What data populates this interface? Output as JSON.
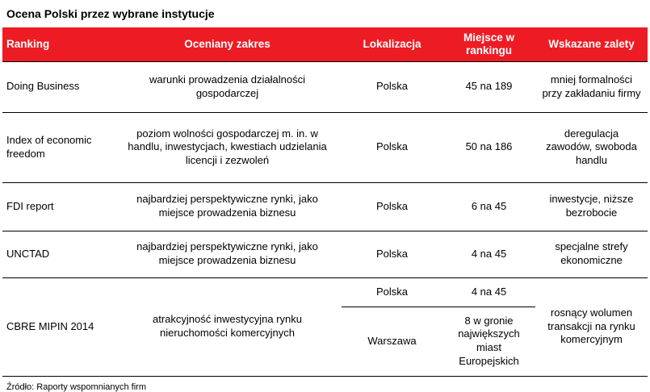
{
  "title": "Ocena Polski przez wybrane instytucje",
  "source": "Źródło: Raporty wspomnianych firm",
  "colors": {
    "header_bg": "#ED1C24",
    "header_text": "#FFFFFF",
    "border": "#000000"
  },
  "table": {
    "headers": [
      "Ranking",
      "Oceniany zakres",
      "Lokalizacja",
      "Miejsce w rankingu",
      "Wskazane zalety"
    ],
    "rows": [
      {
        "ranking": "Doing Business",
        "zakres": "warunki prowadzenia działalności gospodarczej",
        "lokalizacja": "Polska",
        "miejsce": "45 na 189",
        "zalety": "mniej formalności przy zakładaniu firmy"
      },
      {
        "ranking": "Index of economic freedom",
        "zakres": "poziom wolności gospodarczej m. in. w handlu, inwestycjach, kwestiach udzielania licencji i zezwoleń",
        "lokalizacja": "Polska",
        "miejsce": "50 na 186",
        "zalety": "deregulacja zawodów, swoboda handlu"
      },
      {
        "ranking": "FDI report",
        "zakres": "najbardziej perspektywiczne rynki, jako miejsce prowadzenia biznesu",
        "lokalizacja": "Polska",
        "miejsce": "6 na 45",
        "zalety": "inwestycje, niższe bezrobocie"
      },
      {
        "ranking": "UNCTAD",
        "zakres": "najbardziej perspektywiczne rynki, jako miejsce prowadzenia biznesu",
        "lokalizacja": "Polska",
        "miejsce": "4 na 45",
        "zalety": "specjalne strefy ekonomiczne"
      },
      {
        "ranking": "CBRE MIPIN 2014",
        "zakres": "atrakcyjność inwestycyjna rynku nieruchomości komercyjnych",
        "zalety": "rosnący wolumen transakcji na rynku komercyjnym",
        "sub_rows": [
          {
            "lokalizacja": "Polska",
            "miejsce": "4 na 45"
          },
          {
            "lokalizacja": "Warszawa",
            "miejsce": "8 w gronie największych miast Europejskich"
          }
        ]
      }
    ]
  }
}
